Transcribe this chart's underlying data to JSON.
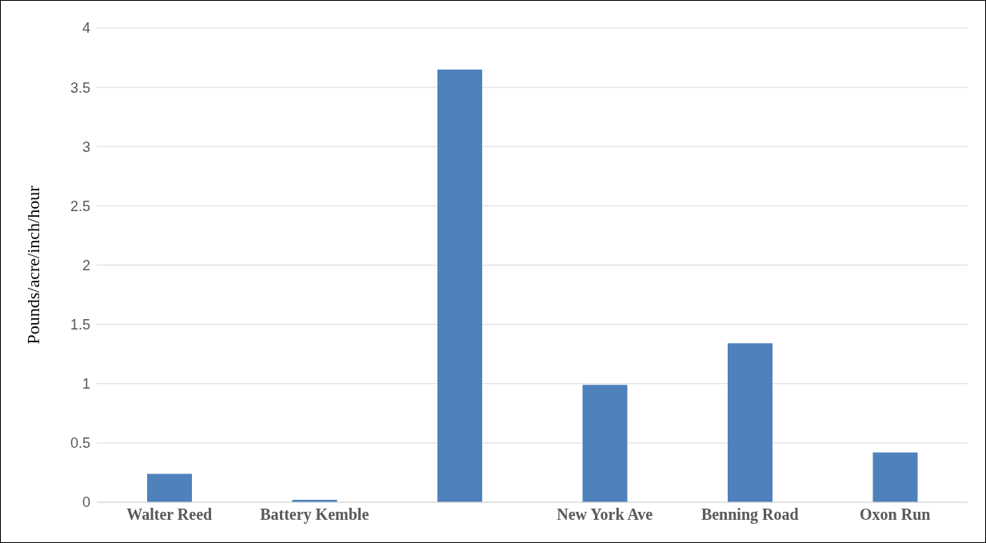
{
  "chart_data": {
    "type": "bar",
    "ylabel": "Pounds/acre/inch/hour",
    "categories": [
      "Walter Reed",
      "Battery Kemble",
      null,
      "New York Ave",
      "Benning Road",
      "Oxon Run"
    ],
    "values": [
      0.24,
      0.02,
      3.65,
      0.99,
      1.34,
      0.42
    ],
    "color": "#4f81bd",
    "ylim": [
      0,
      4
    ],
    "yticks": [
      0,
      0.5,
      1,
      1.5,
      2,
      2.5,
      3,
      3.5,
      4
    ],
    "grid": "y"
  }
}
